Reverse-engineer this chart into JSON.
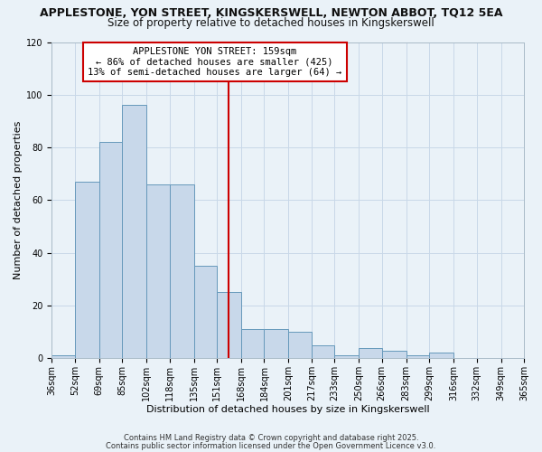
{
  "title": "APPLESTONE, YON STREET, KINGSKERSWELL, NEWTON ABBOT, TQ12 5EA",
  "subtitle": "Size of property relative to detached houses in Kingskerswell",
  "xlabel": "Distribution of detached houses by size in Kingskerswell",
  "ylabel": "Number of detached properties",
  "bar_heights": [
    1,
    67,
    82,
    96,
    66,
    66,
    35,
    25,
    11,
    11,
    10,
    5,
    1,
    4,
    3,
    1,
    2,
    0,
    0,
    0
  ],
  "bin_edges": [
    36,
    52,
    69,
    85,
    102,
    118,
    135,
    151,
    168,
    184,
    201,
    217,
    233,
    250,
    266,
    283,
    299,
    316,
    332,
    349,
    365
  ],
  "bar_color": "#c8d8ea",
  "bar_edge_color": "#6699bb",
  "vline_x": 159,
  "vline_color": "#cc0000",
  "annotation_title": "APPLESTONE YON STREET: 159sqm",
  "annotation_line1": "← 86% of detached houses are smaller (425)",
  "annotation_line2": "13% of semi-detached houses are larger (64) →",
  "annotation_box_edgecolor": "#cc0000",
  "ylim": [
    0,
    120
  ],
  "yticks": [
    0,
    20,
    40,
    60,
    80,
    100,
    120
  ],
  "grid_color": "#c8d8e8",
  "bg_color": "#eaf2f8",
  "footnote1": "Contains HM Land Registry data © Crown copyright and database right 2025.",
  "footnote2": "Contains public sector information licensed under the Open Government Licence v3.0.",
  "title_fontsize": 9,
  "subtitle_fontsize": 8.5,
  "label_fontsize": 8,
  "tick_fontsize": 7,
  "annot_fontsize": 7.5,
  "footnote_fontsize": 6
}
